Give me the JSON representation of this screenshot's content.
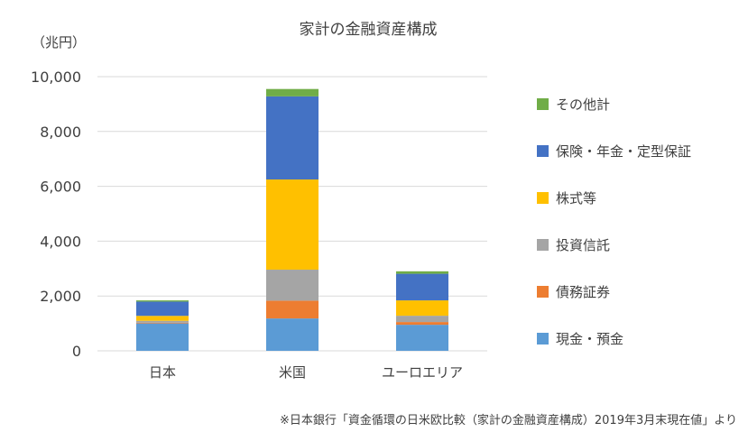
{
  "chart_data": {
    "type": "bar",
    "stacked": true,
    "title": "家計の金融資産構成",
    "unit_label": "（兆円）",
    "categories": [
      "日本",
      "米国",
      "ユーロエリア"
    ],
    "ylim": [
      0,
      10000
    ],
    "yticks": [
      0,
      2000,
      4000,
      6000,
      8000,
      10000
    ],
    "ytick_labels": [
      "0",
      "2,000",
      "4,000",
      "6,000",
      "8,000",
      "10,000"
    ],
    "grid": true,
    "legend_position": "right",
    "series": [
      {
        "name": "現金・預金",
        "color": "#5B9BD5",
        "values": [
          1000,
          1180,
          950
        ]
      },
      {
        "name": "債務証券",
        "color": "#ED7D31",
        "values": [
          25,
          650,
          100
        ]
      },
      {
        "name": "投資信託",
        "color": "#A5A5A5",
        "values": [
          70,
          1130,
          230
        ]
      },
      {
        "name": "株式等",
        "color": "#FFC000",
        "values": [
          180,
          3290,
          560
        ]
      },
      {
        "name": "保険・年金・定型保証",
        "color": "#4472C4",
        "values": [
          520,
          3030,
          970
        ]
      },
      {
        "name": "その他計",
        "color": "#70AD47",
        "values": [
          45,
          270,
          90
        ]
      }
    ],
    "source_note": "※日本銀行「資金循環の日米欧比較（家計の金融資産構成）2019年3月末現在値」より"
  }
}
